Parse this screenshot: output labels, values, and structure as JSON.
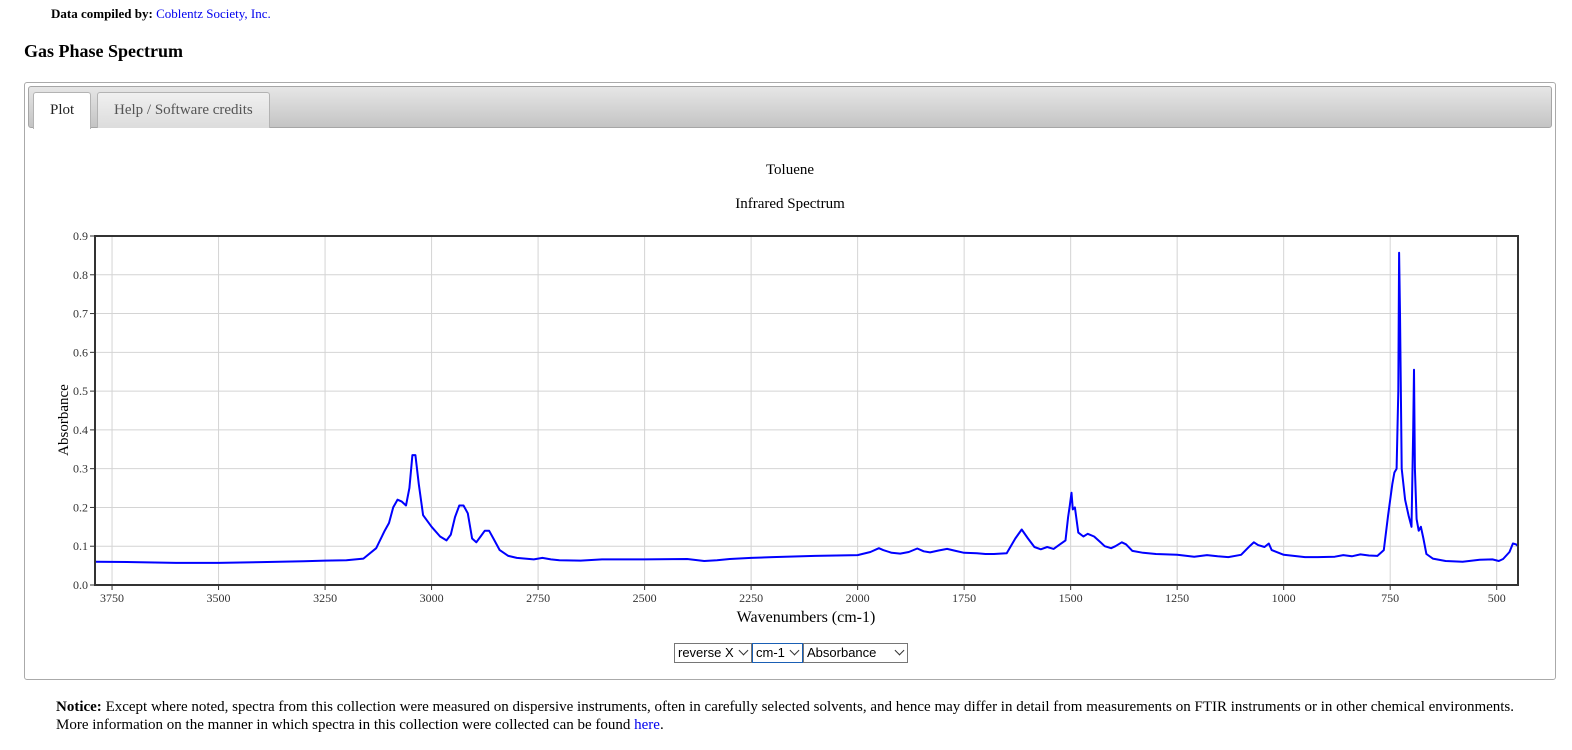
{
  "header": {
    "credit_label": "Data compiled by:",
    "credit_link": "Coblentz Society, Inc.",
    "section_title": "Gas Phase Spectrum"
  },
  "tabs": [
    {
      "label": "Plot",
      "active": true
    },
    {
      "label": "Help / Software credits",
      "active": false
    }
  ],
  "chart_data": {
    "type": "line",
    "title": "Toluene",
    "subtitle": "Infrared Spectrum",
    "xlabel": "Wavenumbers (cm-1)",
    "ylabel": "Absorbance",
    "xlim": [
      3790,
      450
    ],
    "ylim": [
      0.0,
      0.9
    ],
    "x_reversed": true,
    "grid": true,
    "x_ticks": [
      3750,
      3500,
      3250,
      3000,
      2750,
      2500,
      2250,
      2000,
      1750,
      1500,
      1250,
      1000,
      750,
      500
    ],
    "y_ticks": [
      "0.0",
      "0.1",
      "0.2",
      "0.3",
      "0.4",
      "0.5",
      "0.6",
      "0.7",
      "0.8",
      "0.9"
    ],
    "series": [
      {
        "color": "#0000ff",
        "points": [
          [
            3790,
            0.06
          ],
          [
            3700,
            0.059
          ],
          [
            3600,
            0.057
          ],
          [
            3500,
            0.057
          ],
          [
            3400,
            0.059
          ],
          [
            3300,
            0.061
          ],
          [
            3250,
            0.063
          ],
          [
            3200,
            0.064
          ],
          [
            3160,
            0.068
          ],
          [
            3130,
            0.095
          ],
          [
            3110,
            0.14
          ],
          [
            3100,
            0.16
          ],
          [
            3090,
            0.2
          ],
          [
            3080,
            0.22
          ],
          [
            3070,
            0.215
          ],
          [
            3060,
            0.205
          ],
          [
            3052,
            0.25
          ],
          [
            3045,
            0.335
          ],
          [
            3038,
            0.335
          ],
          [
            3030,
            0.26
          ],
          [
            3020,
            0.18
          ],
          [
            3000,
            0.15
          ],
          [
            2980,
            0.125
          ],
          [
            2965,
            0.115
          ],
          [
            2955,
            0.13
          ],
          [
            2945,
            0.175
          ],
          [
            2935,
            0.205
          ],
          [
            2925,
            0.205
          ],
          [
            2915,
            0.185
          ],
          [
            2905,
            0.12
          ],
          [
            2895,
            0.11
          ],
          [
            2885,
            0.125
          ],
          [
            2875,
            0.14
          ],
          [
            2865,
            0.14
          ],
          [
            2855,
            0.12
          ],
          [
            2840,
            0.09
          ],
          [
            2820,
            0.075
          ],
          [
            2800,
            0.07
          ],
          [
            2780,
            0.068
          ],
          [
            2760,
            0.066
          ],
          [
            2740,
            0.07
          ],
          [
            2720,
            0.066
          ],
          [
            2700,
            0.064
          ],
          [
            2650,
            0.063
          ],
          [
            2600,
            0.066
          ],
          [
            2500,
            0.066
          ],
          [
            2400,
            0.067
          ],
          [
            2360,
            0.062
          ],
          [
            2330,
            0.064
          ],
          [
            2300,
            0.067
          ],
          [
            2250,
            0.07
          ],
          [
            2200,
            0.072
          ],
          [
            2100,
            0.075
          ],
          [
            2000,
            0.077
          ],
          [
            1970,
            0.085
          ],
          [
            1950,
            0.095
          ],
          [
            1940,
            0.09
          ],
          [
            1920,
            0.083
          ],
          [
            1900,
            0.081
          ],
          [
            1880,
            0.085
          ],
          [
            1860,
            0.094
          ],
          [
            1845,
            0.087
          ],
          [
            1830,
            0.084
          ],
          [
            1810,
            0.089
          ],
          [
            1790,
            0.093
          ],
          [
            1770,
            0.088
          ],
          [
            1750,
            0.083
          ],
          [
            1720,
            0.082
          ],
          [
            1700,
            0.08
          ],
          [
            1680,
            0.08
          ],
          [
            1650,
            0.082
          ],
          [
            1630,
            0.12
          ],
          [
            1615,
            0.143
          ],
          [
            1600,
            0.12
          ],
          [
            1585,
            0.098
          ],
          [
            1570,
            0.092
          ],
          [
            1555,
            0.098
          ],
          [
            1540,
            0.093
          ],
          [
            1525,
            0.105
          ],
          [
            1512,
            0.115
          ],
          [
            1506,
            0.175
          ],
          [
            1502,
            0.205
          ],
          [
            1498,
            0.238
          ],
          [
            1495,
            0.195
          ],
          [
            1490,
            0.2
          ],
          [
            1482,
            0.135
          ],
          [
            1470,
            0.125
          ],
          [
            1460,
            0.132
          ],
          [
            1445,
            0.125
          ],
          [
            1430,
            0.11
          ],
          [
            1420,
            0.1
          ],
          [
            1405,
            0.095
          ],
          [
            1395,
            0.1
          ],
          [
            1380,
            0.11
          ],
          [
            1370,
            0.105
          ],
          [
            1355,
            0.088
          ],
          [
            1330,
            0.083
          ],
          [
            1300,
            0.08
          ],
          [
            1250,
            0.078
          ],
          [
            1210,
            0.073
          ],
          [
            1180,
            0.077
          ],
          [
            1155,
            0.074
          ],
          [
            1130,
            0.072
          ],
          [
            1100,
            0.078
          ],
          [
            1080,
            0.1
          ],
          [
            1070,
            0.11
          ],
          [
            1060,
            0.103
          ],
          [
            1045,
            0.098
          ],
          [
            1035,
            0.107
          ],
          [
            1028,
            0.09
          ],
          [
            1000,
            0.078
          ],
          [
            950,
            0.072
          ],
          [
            920,
            0.072
          ],
          [
            880,
            0.073
          ],
          [
            860,
            0.077
          ],
          [
            840,
            0.074
          ],
          [
            820,
            0.079
          ],
          [
            800,
            0.076
          ],
          [
            780,
            0.075
          ],
          [
            765,
            0.09
          ],
          [
            755,
            0.18
          ],
          [
            745,
            0.26
          ],
          [
            740,
            0.29
          ],
          [
            735,
            0.3
          ],
          [
            731,
            0.5
          ],
          [
            729,
            0.857
          ],
          [
            727,
            0.7
          ],
          [
            723,
            0.3
          ],
          [
            715,
            0.22
          ],
          [
            707,
            0.18
          ],
          [
            700,
            0.15
          ],
          [
            696,
            0.4
          ],
          [
            694,
            0.555
          ],
          [
            692,
            0.3
          ],
          [
            688,
            0.17
          ],
          [
            683,
            0.14
          ],
          [
            678,
            0.15
          ],
          [
            672,
            0.12
          ],
          [
            665,
            0.08
          ],
          [
            650,
            0.068
          ],
          [
            620,
            0.062
          ],
          [
            580,
            0.06
          ],
          [
            540,
            0.065
          ],
          [
            510,
            0.066
          ],
          [
            495,
            0.062
          ],
          [
            485,
            0.067
          ],
          [
            470,
            0.085
          ],
          [
            462,
            0.107
          ],
          [
            455,
            0.105
          ],
          [
            450,
            0.1
          ]
        ]
      }
    ]
  },
  "controls": {
    "reverse_select": "reverse X",
    "unit_select": "cm-1",
    "mode_select": "Absorbance"
  },
  "notice": {
    "label": "Notice:",
    "text": "Except where noted, spectra from this collection were measured on dispersive instruments, often in carefully selected solvents, and hence may differ in detail from measurements on FTIR instruments or in other chemical environments. More information on the manner in which spectra in this collection were collected can be found",
    "link": "here",
    "end": "."
  }
}
